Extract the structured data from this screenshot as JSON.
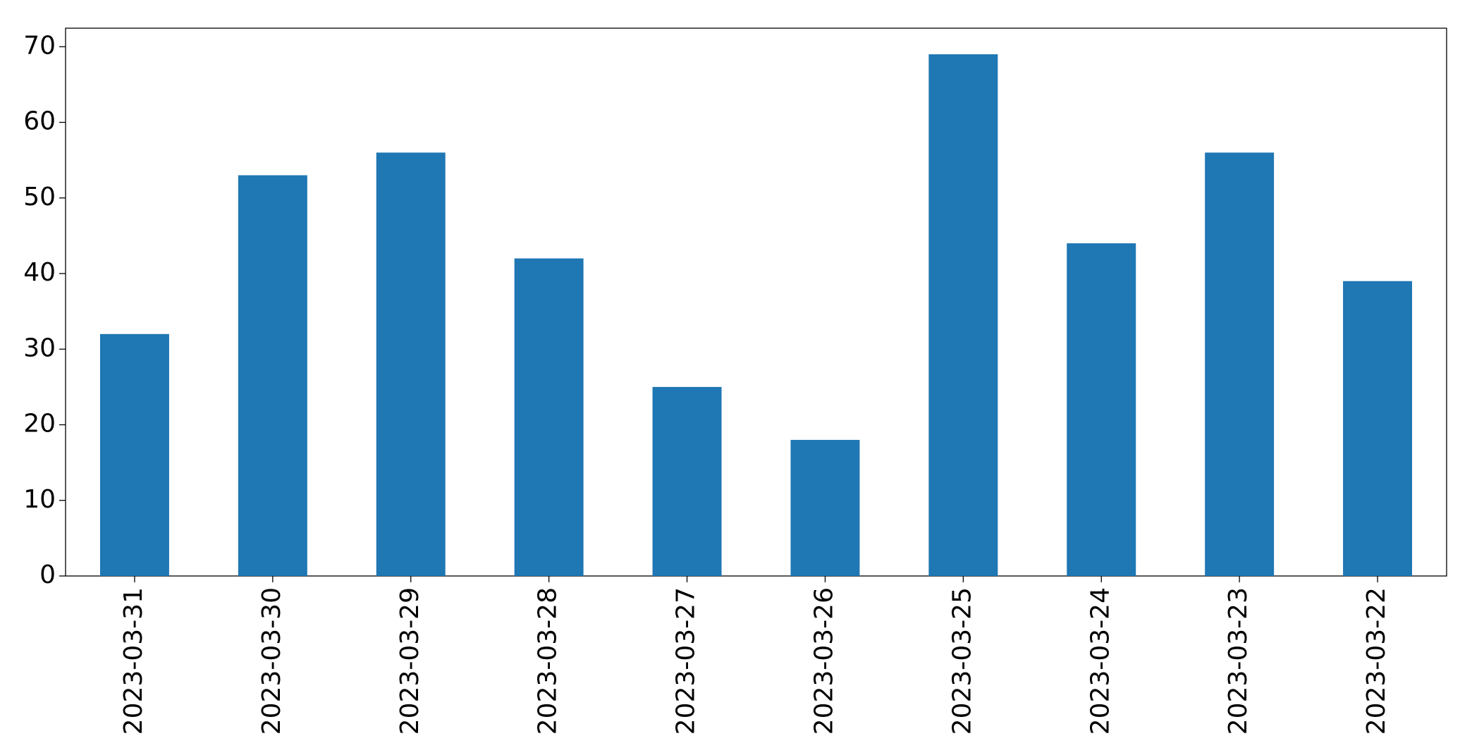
{
  "chart_data": {
    "type": "bar",
    "categories": [
      "2023-03-31",
      "2023-03-30",
      "2023-03-29",
      "2023-03-28",
      "2023-03-27",
      "2023-03-26",
      "2023-03-25",
      "2023-03-24",
      "2023-03-23",
      "2023-03-22"
    ],
    "values": [
      32,
      53,
      56,
      42,
      25,
      18,
      69,
      44,
      56,
      39
    ],
    "color": "#1f77b4",
    "ylim": [
      0,
      72.45
    ],
    "yticks": [
      0,
      10,
      20,
      30,
      40,
      50,
      60,
      70
    ],
    "grid": false
  }
}
